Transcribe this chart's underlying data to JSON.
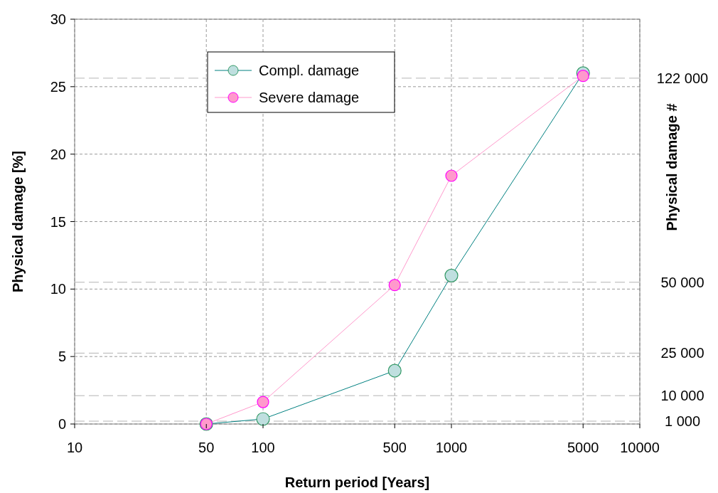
{
  "chart_data": {
    "type": "line",
    "xlabel": "Return period [Years]",
    "ylabel": "Physical damage [%]",
    "y2label": "Physical damage #",
    "x": [
      50,
      100,
      500,
      1000,
      5000
    ],
    "log": "x",
    "xlim": [
      10,
      10000
    ],
    "xticks": [
      10,
      50,
      100,
      500,
      1000,
      5000,
      10000
    ],
    "ylim": [
      0,
      30
    ],
    "yticks": [
      0,
      5,
      10,
      15,
      20,
      25,
      30
    ],
    "y2lim": [
      0,
      142800
    ],
    "y2ticks": [
      {
        "value": 1000,
        "label": "1 000"
      },
      {
        "value": 10000,
        "label": "10 000"
      },
      {
        "value": 25000,
        "label": "25 000"
      },
      {
        "value": 50000,
        "label": "50 000"
      },
      {
        "value": 122000,
        "label": "122 000"
      }
    ],
    "grid": true,
    "legend": "top",
    "marker": "circle",
    "series": [
      {
        "name": "Compl. damage",
        "color": "#008080",
        "values": [
          0,
          0.37,
          3.95,
          11.0,
          26.0
        ]
      },
      {
        "name": "Severe damage",
        "color": "#ff99cc",
        "values": [
          0,
          1.63,
          10.3,
          18.4,
          25.8
        ]
      }
    ]
  }
}
